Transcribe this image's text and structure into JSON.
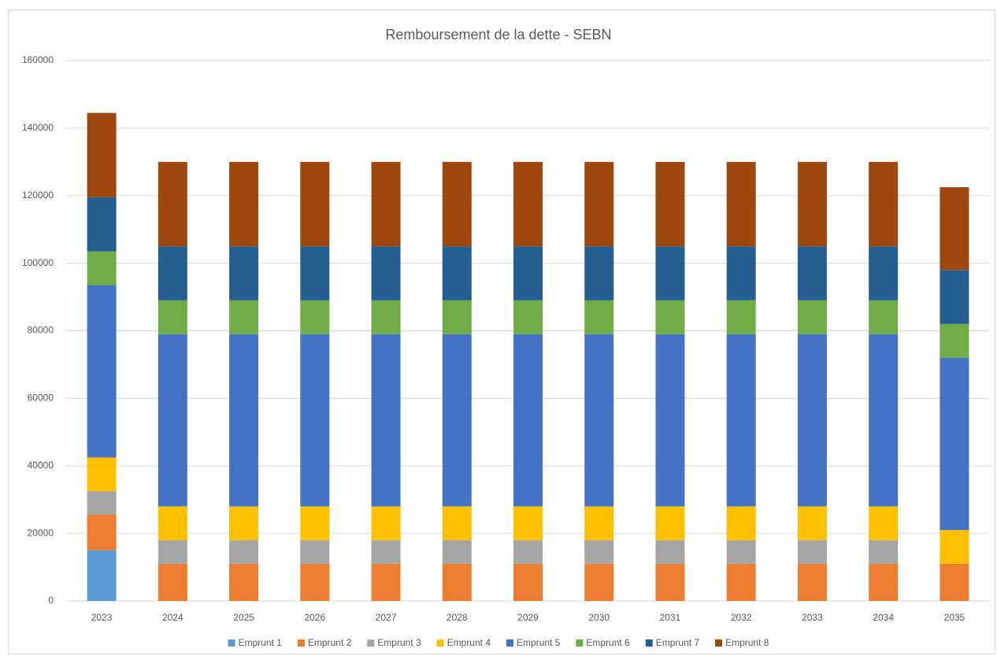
{
  "chart_data": {
    "type": "stacked_bar",
    "title": "Remboursement de la dette - SEBN",
    "categories": [
      "2023",
      "2024",
      "2025",
      "2026",
      "2027",
      "2028",
      "2029",
      "2030",
      "2031",
      "2032",
      "2033",
      "2034",
      "2035"
    ],
    "series": [
      {
        "name": "Emprunt 1",
        "color": "#5b9bd5",
        "values": [
          15000,
          0,
          0,
          0,
          0,
          0,
          0,
          0,
          0,
          0,
          0,
          0,
          0
        ]
      },
      {
        "name": "Emprunt 2",
        "color": "#ed7d31",
        "values": [
          10500,
          11000,
          11000,
          11000,
          11000,
          11000,
          11000,
          11000,
          11000,
          11000,
          11000,
          11000,
          11000
        ]
      },
      {
        "name": "Emprunt 3",
        "color": "#a5a5a5",
        "values": [
          7000,
          7000,
          7000,
          7000,
          7000,
          7000,
          7000,
          7000,
          7000,
          7000,
          7000,
          7000,
          0
        ]
      },
      {
        "name": "Emprunt 4",
        "color": "#ffc000",
        "values": [
          10000,
          10000,
          10000,
          10000,
          10000,
          10000,
          10000,
          10000,
          10000,
          10000,
          10000,
          10000,
          10000
        ]
      },
      {
        "name": "Emprunt 5",
        "color": "#4472c4",
        "values": [
          51000,
          51000,
          51000,
          51000,
          51000,
          51000,
          51000,
          51000,
          51000,
          51000,
          51000,
          51000,
          51000
        ]
      },
      {
        "name": "Emprunt 6",
        "color": "#70ad47",
        "values": [
          10000,
          10000,
          10000,
          10000,
          10000,
          10000,
          10000,
          10000,
          10000,
          10000,
          10000,
          10000,
          10000
        ]
      },
      {
        "name": "Emprunt 7",
        "color": "#255e91",
        "values": [
          16000,
          16000,
          16000,
          16000,
          16000,
          16000,
          16000,
          16000,
          16000,
          16000,
          16000,
          16000,
          16000
        ]
      },
      {
        "name": "Emprunt 8",
        "color": "#9e480e",
        "values": [
          25000,
          25000,
          25000,
          25000,
          25000,
          25000,
          25000,
          25000,
          25000,
          25000,
          25000,
          25000,
          24500
        ]
      }
    ],
    "ylim": [
      0,
      160000
    ],
    "yticks": [
      0,
      20000,
      40000,
      60000,
      80000,
      100000,
      120000,
      140000,
      160000
    ],
    "grid": true,
    "legend": "bottom"
  }
}
